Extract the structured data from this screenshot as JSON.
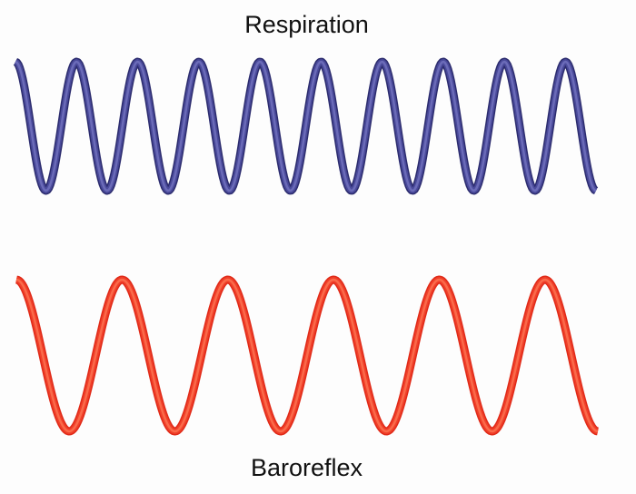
{
  "waves": [
    {
      "label": "Respiration",
      "cycles": 9.5,
      "color": "#4a4a9a",
      "edge_color": "#2c2c6e",
      "highlight_color": "#6b6bb8"
    },
    {
      "label": "Baroreflex",
      "cycles": 5.5,
      "color": "#f0402a",
      "edge_color": "#e02a18",
      "highlight_color": "#fa6a4a"
    }
  ]
}
